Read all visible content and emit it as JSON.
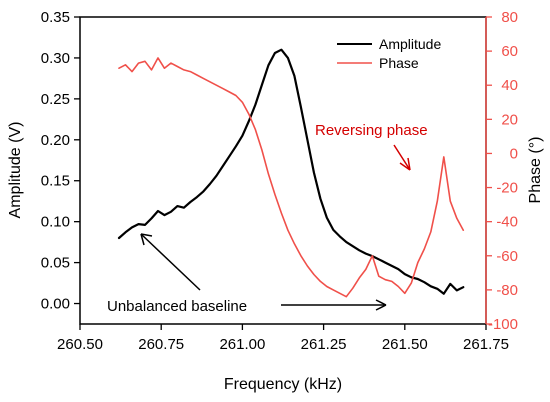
{
  "chart_data": {
    "type": "line",
    "xlabel": "Frequency (kHz)",
    "ylabel_left": "Amplitude (V)",
    "ylabel_right": "Phase (°)",
    "xlim": [
      260.5,
      261.75
    ],
    "ylim_left": [
      -0.025,
      0.35
    ],
    "ylim_right": [
      -100,
      80
    ],
    "x_ticks": [
      "260.50",
      "260.75",
      "261.00",
      "261.25",
      "261.50",
      "261.75"
    ],
    "y_left_ticks": [
      "0.00",
      "0.05",
      "0.10",
      "0.15",
      "0.20",
      "0.25",
      "0.30",
      "0.35"
    ],
    "y_right_ticks": [
      "-100",
      "-80",
      "-60",
      "-40",
      "-20",
      "0",
      "20",
      "40",
      "60",
      "80"
    ],
    "grid": false,
    "legend_position": "top-right",
    "series": [
      {
        "name": "Amplitude",
        "axis": "left",
        "color": "#000000",
        "points": [
          [
            260.62,
            0.08
          ],
          [
            260.64,
            0.087
          ],
          [
            260.66,
            0.093
          ],
          [
            260.68,
            0.097
          ],
          [
            260.7,
            0.096
          ],
          [
            260.72,
            0.104
          ],
          [
            260.74,
            0.113
          ],
          [
            260.76,
            0.108
          ],
          [
            260.78,
            0.112
          ],
          [
            260.8,
            0.119
          ],
          [
            260.82,
            0.117
          ],
          [
            260.84,
            0.124
          ],
          [
            260.86,
            0.13
          ],
          [
            260.88,
            0.137
          ],
          [
            260.9,
            0.146
          ],
          [
            260.92,
            0.156
          ],
          [
            260.94,
            0.168
          ],
          [
            260.96,
            0.18
          ],
          [
            260.98,
            0.192
          ],
          [
            261.0,
            0.205
          ],
          [
            261.02,
            0.223
          ],
          [
            261.04,
            0.243
          ],
          [
            261.06,
            0.267
          ],
          [
            261.08,
            0.291
          ],
          [
            261.1,
            0.306
          ],
          [
            261.12,
            0.31
          ],
          [
            261.14,
            0.3
          ],
          [
            261.16,
            0.278
          ],
          [
            261.18,
            0.24
          ],
          [
            261.2,
            0.2
          ],
          [
            261.22,
            0.16
          ],
          [
            261.24,
            0.128
          ],
          [
            261.26,
            0.105
          ],
          [
            261.28,
            0.09
          ],
          [
            261.3,
            0.082
          ],
          [
            261.32,
            0.075
          ],
          [
            261.34,
            0.07
          ],
          [
            261.36,
            0.065
          ],
          [
            261.38,
            0.061
          ],
          [
            261.4,
            0.058
          ],
          [
            261.42,
            0.054
          ],
          [
            261.44,
            0.05
          ],
          [
            261.46,
            0.046
          ],
          [
            261.48,
            0.042
          ],
          [
            261.5,
            0.036
          ],
          [
            261.52,
            0.032
          ],
          [
            261.54,
            0.03
          ],
          [
            261.56,
            0.026
          ],
          [
            261.58,
            0.021
          ],
          [
            261.6,
            0.018
          ],
          [
            261.62,
            0.012
          ],
          [
            261.64,
            0.024
          ],
          [
            261.66,
            0.016
          ],
          [
            261.68,
            0.02
          ]
        ]
      },
      {
        "name": "Phase",
        "axis": "right",
        "color": "#f0504a",
        "points": [
          [
            260.62,
            50
          ],
          [
            260.64,
            52
          ],
          [
            260.66,
            48
          ],
          [
            260.68,
            53
          ],
          [
            260.7,
            54
          ],
          [
            260.72,
            49
          ],
          [
            260.74,
            56
          ],
          [
            260.76,
            50
          ],
          [
            260.78,
            53
          ],
          [
            260.8,
            51
          ],
          [
            260.82,
            49
          ],
          [
            260.84,
            48
          ],
          [
            260.86,
            46
          ],
          [
            260.88,
            44
          ],
          [
            260.9,
            42
          ],
          [
            260.92,
            40
          ],
          [
            260.94,
            38
          ],
          [
            260.96,
            36
          ],
          [
            260.98,
            34
          ],
          [
            261.0,
            30
          ],
          [
            261.02,
            23
          ],
          [
            261.04,
            14
          ],
          [
            261.06,
            2
          ],
          [
            261.08,
            -12
          ],
          [
            261.1,
            -24
          ],
          [
            261.12,
            -35
          ],
          [
            261.14,
            -45
          ],
          [
            261.16,
            -53
          ],
          [
            261.18,
            -60
          ],
          [
            261.2,
            -66
          ],
          [
            261.22,
            -71
          ],
          [
            261.24,
            -75
          ],
          [
            261.26,
            -78
          ],
          [
            261.28,
            -80
          ],
          [
            261.3,
            -82
          ],
          [
            261.32,
            -84
          ],
          [
            261.34,
            -79
          ],
          [
            261.36,
            -73
          ],
          [
            261.38,
            -68
          ],
          [
            261.4,
            -60
          ],
          [
            261.42,
            -72
          ],
          [
            261.44,
            -74
          ],
          [
            261.46,
            -75
          ],
          [
            261.48,
            -78
          ],
          [
            261.5,
            -82
          ],
          [
            261.52,
            -76
          ],
          [
            261.54,
            -64
          ],
          [
            261.56,
            -56
          ],
          [
            261.58,
            -46
          ],
          [
            261.6,
            -28
          ],
          [
            261.62,
            -2
          ],
          [
            261.64,
            -28
          ],
          [
            261.66,
            -38
          ],
          [
            261.68,
            -45
          ]
        ]
      }
    ],
    "annotations": [
      {
        "text": "Reversing phase",
        "color": "#d40000"
      },
      {
        "text": "Unbalanced baseline",
        "color": "#000000"
      }
    ]
  }
}
